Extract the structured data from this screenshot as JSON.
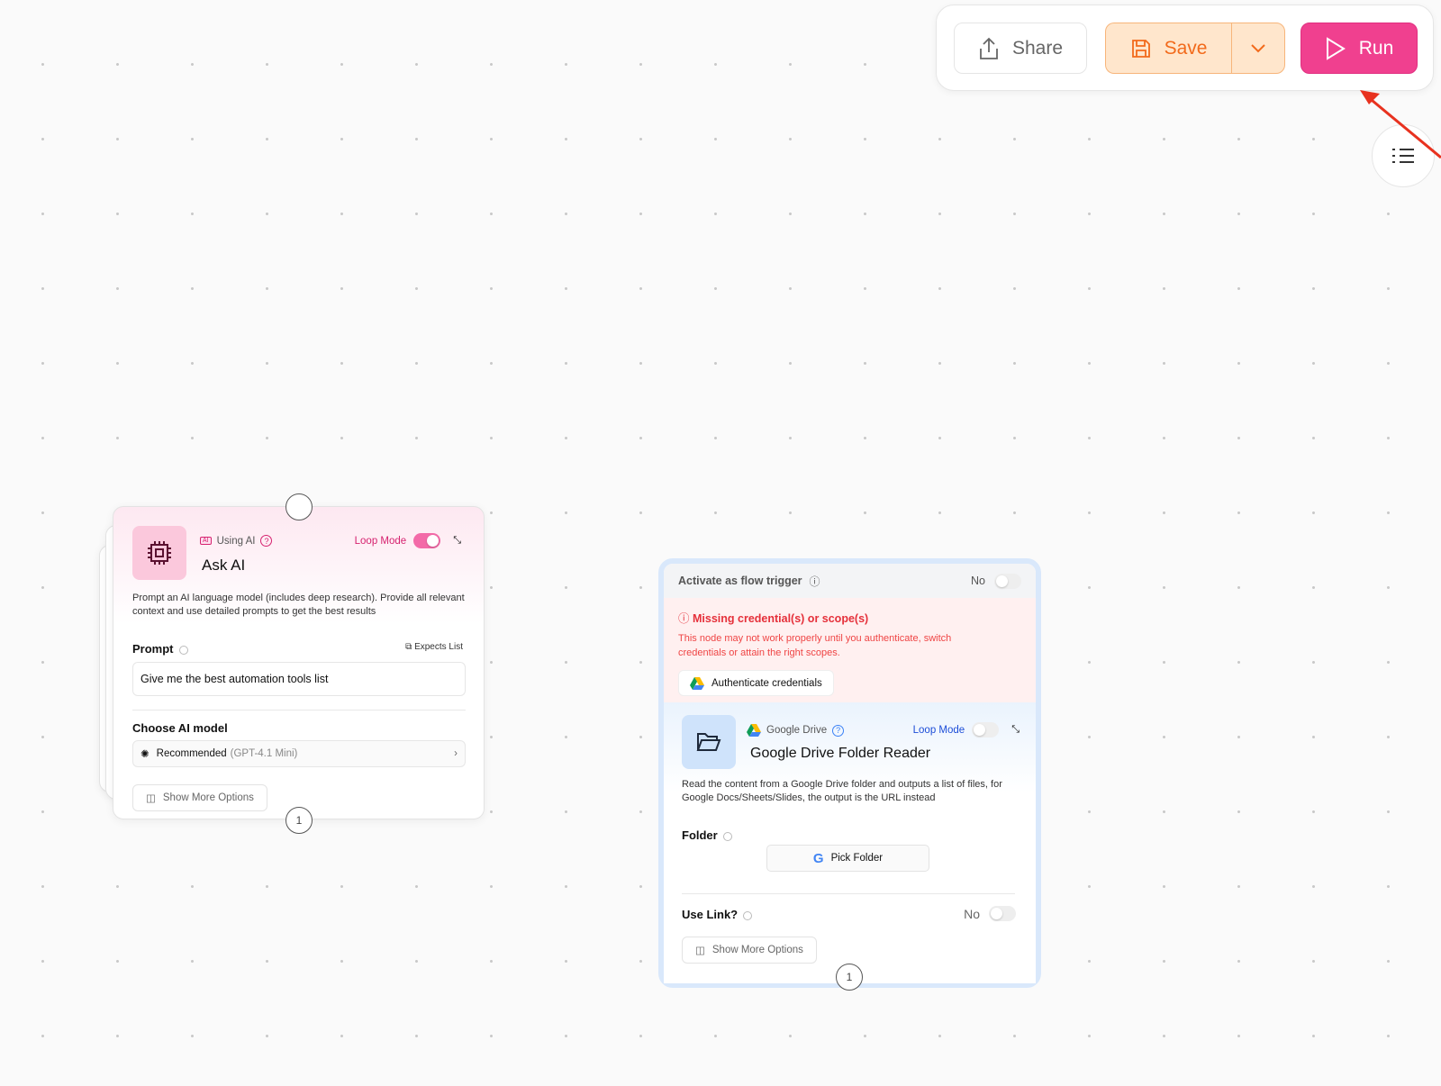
{
  "toolbar": {
    "share": "Share",
    "save": "Save",
    "run": "Run"
  },
  "ask_ai": {
    "provider": "Using AI",
    "loop_mode": "Loop Mode",
    "loop_mode_on": true,
    "title": "Ask AI",
    "description": "Prompt an AI language model (includes deep research). Provide all relevant context and use detailed prompts to get the best results",
    "prompt_label": "Prompt",
    "expects_list": "Expects List",
    "prompt_value": "Give me the best automation tools list",
    "model_label": "Choose AI model",
    "model_value": "Recommended",
    "model_detail": "(GPT-4.1 Mini)",
    "show_more": "Show More Options",
    "output_count": "1"
  },
  "gdrive": {
    "trigger_label": "Activate as flow trigger",
    "trigger_value": "No",
    "error_title": "Missing credential(s) or scope(s)",
    "error_text": "This node may not work properly until you authenticate, switch credentials or attain the right scopes.",
    "auth_button": "Authenticate credentials",
    "provider": "Google Drive",
    "loop_mode": "Loop Mode",
    "loop_mode_on": false,
    "title": "Google Drive Folder Reader",
    "description": "Read the content from a Google Drive folder and outputs a list of files, for Google Docs/Sheets/Slides, the output is the URL instead",
    "folder_label": "Folder",
    "pick_folder": "Pick Folder",
    "use_link_label": "Use Link?",
    "use_link_value": "No",
    "show_more": "Show More Options",
    "output_count": "1"
  },
  "colors": {
    "run": "#f0408f",
    "save": "#f26a1b",
    "error": "#e5303a",
    "loop_blue": "#1d4ed8",
    "loop_pink": "#d6226f"
  }
}
